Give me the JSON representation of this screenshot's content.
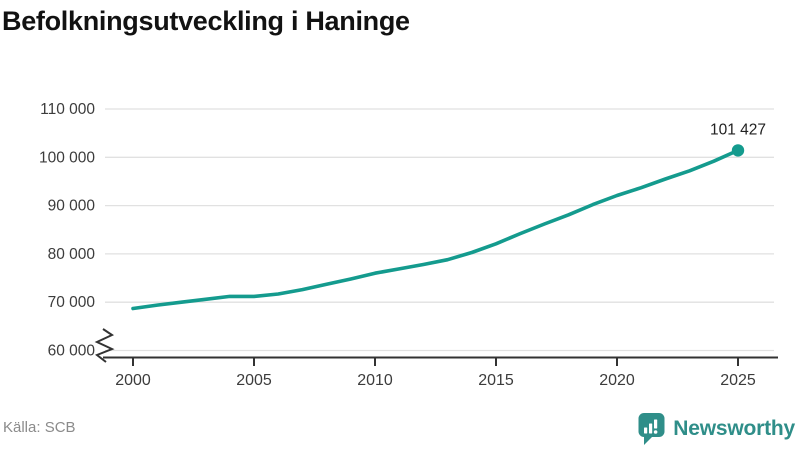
{
  "title": "Befolkningsutveckling i Haninge",
  "source": "Källa: SCB",
  "branding": {
    "name": "Newsworthy",
    "logo_icon": "bar-chart-speech-bubble"
  },
  "colors": {
    "line": "#149b8e",
    "dot": "#149b8e",
    "grid": "#e1e1e1",
    "axis": "#333333",
    "title": "#121212",
    "tick_label": "#3c3c3c",
    "annotation": "#222222",
    "source_text": "#8b8b8b",
    "brand": "#2f8e89"
  },
  "chart_data": {
    "type": "line",
    "title": "Befolkningsutveckling i Haninge",
    "xlabel": "",
    "ylabel": "",
    "grid": "horizontal",
    "legend": "none",
    "axis_break_at_bottom": true,
    "ylim": [
      60000,
      113000
    ],
    "x": [
      2000,
      2001,
      2002,
      2003,
      2004,
      2005,
      2006,
      2007,
      2008,
      2009,
      2010,
      2011,
      2012,
      2013,
      2014,
      2015,
      2016,
      2017,
      2018,
      2019,
      2020,
      2021,
      2022,
      2023,
      2024,
      2025
    ],
    "values": [
      68700,
      69400,
      70000,
      70600,
      71200,
      71200,
      71700,
      72600,
      73700,
      74800,
      76000,
      76900,
      77800,
      78800,
      80300,
      82100,
      84200,
      86200,
      88100,
      90200,
      92100,
      93700,
      95500,
      97200,
      99200,
      101427
    ],
    "y_ticks": [
      {
        "value": 110000,
        "label": "110 000"
      },
      {
        "value": 100000,
        "label": "100 000"
      },
      {
        "value": 90000,
        "label": "90 000"
      },
      {
        "value": 80000,
        "label": "80 000"
      },
      {
        "value": 70000,
        "label": "70 000"
      },
      {
        "value": 60000,
        "label": "60 000"
      }
    ],
    "x_ticks": [
      {
        "value": 2000,
        "label": "2000"
      },
      {
        "value": 2005,
        "label": "2005"
      },
      {
        "value": 2010,
        "label": "2010"
      },
      {
        "value": 2015,
        "label": "2015"
      },
      {
        "value": 2020,
        "label": "2020"
      },
      {
        "value": 2025,
        "label": "2025"
      }
    ],
    "end_annotation": {
      "x": 2025,
      "value": 101427,
      "label": "101 427"
    }
  }
}
